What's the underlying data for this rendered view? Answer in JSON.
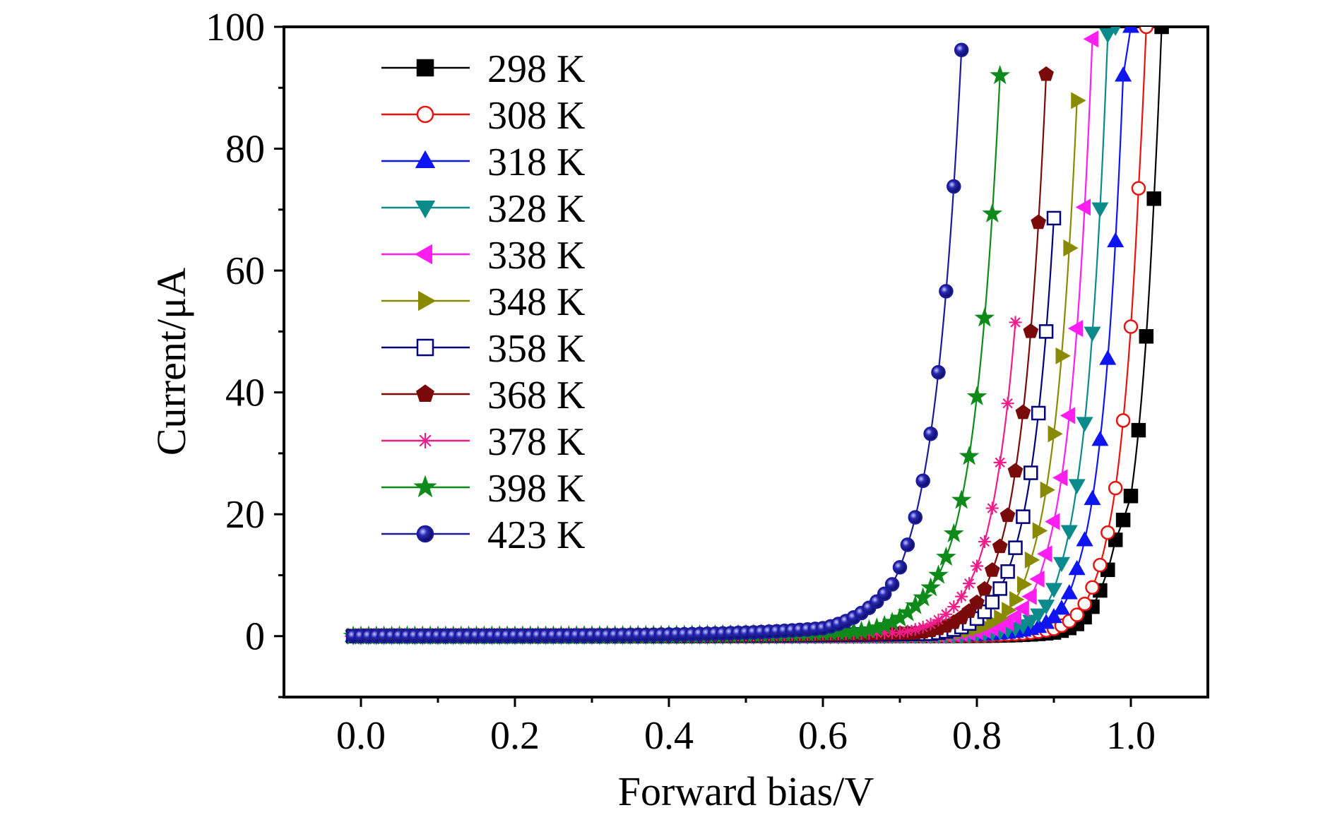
{
  "chart_data": {
    "type": "line",
    "xlabel": "Forward bias/V",
    "ylabel": "Current/μA",
    "xlim": [
      -0.1,
      1.1
    ],
    "ylim": [
      -10,
      100
    ],
    "xticks": [
      0.0,
      0.2,
      0.4,
      0.6,
      0.8,
      1.0
    ],
    "xtick_labels": [
      "0.0",
      "0.2",
      "0.4",
      "0.6",
      "0.8",
      "1.0"
    ],
    "yticks": [
      0,
      20,
      40,
      60,
      80,
      100
    ],
    "ytick_labels": [
      "0",
      "20",
      "40",
      "60",
      "80",
      "100"
    ],
    "grid": false,
    "legend_position": "top-left",
    "series": [
      {
        "name": "298 K",
        "color": "#000000",
        "marker": "square",
        "fill": "filled",
        "x": [
          0.0,
          0.8,
          0.9,
          0.93,
          0.96,
          0.98,
          1.0,
          1.01,
          1.02,
          1.03,
          1.04
        ],
        "y": [
          0,
          0.05,
          0.6,
          2.0,
          7.5,
          15.8,
          23.0,
          33.8,
          49.2,
          71.8,
          100
        ]
      },
      {
        "name": "308 K",
        "color": "#e8130f",
        "marker": "circle",
        "fill": "open",
        "x": [
          0.0,
          0.8,
          0.9,
          0.93,
          0.95,
          0.97,
          0.98,
          0.99,
          1.0,
          1.01,
          1.02
        ],
        "y": [
          0,
          0.1,
          1.2,
          3.5,
          8.0,
          17.0,
          24.3,
          35.4,
          50.8,
          73.5,
          100
        ]
      },
      {
        "name": "318 K",
        "color": "#0f15f0",
        "marker": "triangle-up",
        "fill": "filled",
        "x": [
          0.0,
          0.8,
          0.88,
          0.91,
          0.93,
          0.95,
          0.96,
          0.97,
          0.98,
          0.99,
          1.0
        ],
        "y": [
          0,
          0.2,
          1.5,
          4.5,
          11.0,
          22.5,
          32.2,
          45.5,
          64.8,
          92.0,
          100
        ]
      },
      {
        "name": "328 K",
        "color": "#0a8a8a",
        "marker": "triangle-down",
        "fill": "filled",
        "x": [
          0.0,
          0.78,
          0.86,
          0.89,
          0.91,
          0.93,
          0.94,
          0.95,
          0.96,
          0.97,
          0.98
        ],
        "y": [
          0,
          0.2,
          1.8,
          5.0,
          12.0,
          24.8,
          35.0,
          49.8,
          70.2,
          98.8,
          100
        ]
      },
      {
        "name": "338 K",
        "color": "#ff1ef0",
        "marker": "triangle-left",
        "fill": "filled",
        "x": [
          0.0,
          0.76,
          0.84,
          0.87,
          0.89,
          0.9,
          0.91,
          0.92,
          0.93,
          0.94,
          0.95
        ],
        "y": [
          0,
          0.25,
          2.2,
          6.5,
          13.5,
          18.8,
          26.0,
          36.2,
          50.5,
          70.4,
          98.0
        ]
      },
      {
        "name": "348 K",
        "color": "#8a8a00",
        "marker": "triangle-right",
        "fill": "filled",
        "x": [
          0.0,
          0.75,
          0.83,
          0.86,
          0.87,
          0.88,
          0.89,
          0.9,
          0.91,
          0.92,
          0.93
        ],
        "y": [
          0,
          0.3,
          3.0,
          8.5,
          12.5,
          17.3,
          24.0,
          33.2,
          46.0,
          63.7,
          87.9
        ]
      },
      {
        "name": "358 K",
        "color": "#00007a",
        "marker": "square",
        "fill": "open",
        "x": [
          0.0,
          0.74,
          0.81,
          0.83,
          0.84,
          0.85,
          0.86,
          0.87,
          0.88,
          0.89,
          0.9
        ],
        "y": [
          0,
          0.4,
          4.0,
          7.8,
          10.6,
          14.5,
          19.6,
          26.8,
          36.6,
          50.0,
          68.6
        ]
      },
      {
        "name": "368 K",
        "color": "#7a0a0a",
        "marker": "pentagon",
        "fill": "filled",
        "x": [
          0.0,
          0.72,
          0.8,
          0.82,
          0.83,
          0.84,
          0.85,
          0.86,
          0.87,
          0.88,
          0.89
        ],
        "y": [
          0,
          0.5,
          5.5,
          10.8,
          14.7,
          19.8,
          27.1,
          36.7,
          50.0,
          67.9,
          92.2
        ]
      },
      {
        "name": "378 K",
        "color": "#ee1d8a",
        "marker": "asterisk",
        "fill": "filled",
        "x": [
          0.0,
          0.7,
          0.78,
          0.8,
          0.81,
          0.82,
          0.83,
          0.84,
          0.85
        ],
        "y": [
          0,
          0.6,
          6.5,
          11.5,
          15.5,
          21.0,
          28.5,
          38.2,
          51.5
        ]
      },
      {
        "name": "398 K",
        "color": "#0e8a1a",
        "marker": "star",
        "fill": "filled",
        "x": [
          0.0,
          0.65,
          0.72,
          0.75,
          0.77,
          0.78,
          0.79,
          0.8,
          0.81,
          0.82,
          0.83
        ],
        "y": [
          0,
          0.8,
          5.0,
          10.0,
          16.8,
          22.3,
          29.5,
          39.3,
          52.2,
          69.3,
          92.0
        ]
      },
      {
        "name": "423 K",
        "color": "#1a1a9a",
        "marker": "sphere",
        "fill": "filled",
        "x": [
          0.0,
          0.6,
          0.65,
          0.69,
          0.71,
          0.72,
          0.73,
          0.74,
          0.75,
          0.76,
          0.77,
          0.78
        ],
        "y": [
          0,
          1.3,
          3.8,
          8.5,
          15.0,
          19.5,
          25.5,
          33.2,
          43.3,
          56.6,
          73.8,
          96.2
        ]
      }
    ]
  }
}
